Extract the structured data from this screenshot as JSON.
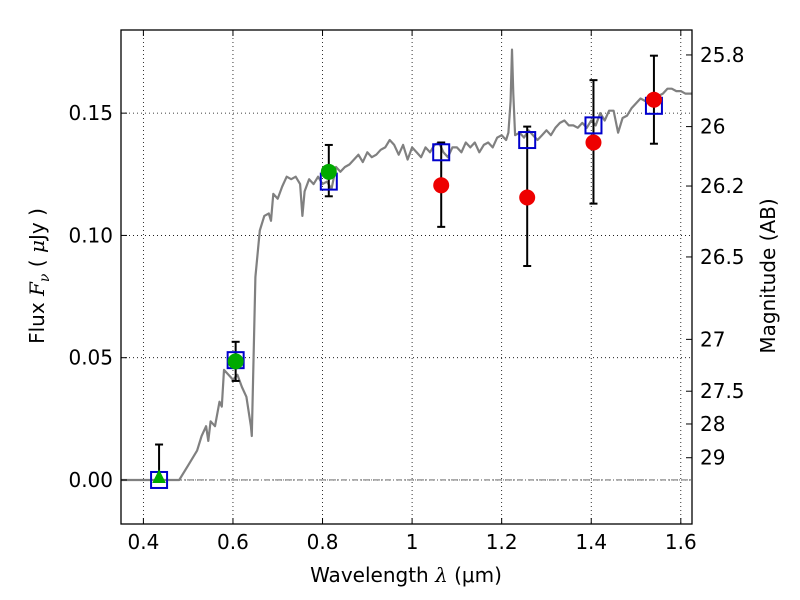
{
  "chart_data": {
    "type": "scatter",
    "xlabel": {
      "prefix": "Wavelength  ",
      "symbol": "λ",
      "unit": " (μm)"
    },
    "ylabel": {
      "prefix": "Flux  ",
      "symbol": "F",
      "sub": "ν",
      "open": "  ( ",
      "unit": "μ",
      "close": "Jy )"
    },
    "y2label": "Magnitude (AB)",
    "xlim": [
      0.35,
      1.625
    ],
    "ylim": [
      -0.018,
      0.184
    ],
    "grid": true,
    "x_ticks": [
      {
        "value": 0.4,
        "label": "0.4"
      },
      {
        "value": 0.6,
        "label": "0.6"
      },
      {
        "value": 0.8,
        "label": "0.8"
      },
      {
        "value": 1.0,
        "label": "1"
      },
      {
        "value": 1.2,
        "label": "1.2"
      },
      {
        "value": 1.4,
        "label": "1.4"
      },
      {
        "value": 1.6,
        "label": "1.6"
      }
    ],
    "y_ticks": [
      {
        "value": 0.0,
        "label": "0.00"
      },
      {
        "value": 0.05,
        "label": "0.05"
      },
      {
        "value": 0.1,
        "label": "0.10"
      },
      {
        "value": 0.15,
        "label": "0.15"
      }
    ],
    "y2_ticks": [
      {
        "flux": 0.1738,
        "label": "25.8"
      },
      {
        "flux": 0.1445,
        "label": "26"
      },
      {
        "flux": 0.1202,
        "label": "26.2"
      },
      {
        "flux": 0.0912,
        "label": "26.5"
      },
      {
        "flux": 0.0575,
        "label": "27"
      },
      {
        "flux": 0.0363,
        "label": "27.5"
      },
      {
        "flux": 0.0229,
        "label": "28"
      },
      {
        "flux": 0.0091,
        "label": "29"
      }
    ],
    "zero_line": 0.0,
    "series": [
      {
        "kind": "model_sed",
        "color": "#808080",
        "points": [
          [
            0.35,
            0.0
          ],
          [
            0.48,
            0.0
          ],
          [
            0.5,
            0.006
          ],
          [
            0.52,
            0.012
          ],
          [
            0.53,
            0.018
          ],
          [
            0.54,
            0.022
          ],
          [
            0.545,
            0.016
          ],
          [
            0.55,
            0.024
          ],
          [
            0.56,
            0.022
          ],
          [
            0.57,
            0.032
          ],
          [
            0.575,
            0.03
          ],
          [
            0.58,
            0.045
          ],
          [
            0.59,
            0.043
          ],
          [
            0.6,
            0.041
          ],
          [
            0.61,
            0.043
          ],
          [
            0.62,
            0.038
          ],
          [
            0.63,
            0.034
          ],
          [
            0.64,
            0.022
          ],
          [
            0.642,
            0.018
          ],
          [
            0.65,
            0.083
          ],
          [
            0.66,
            0.102
          ],
          [
            0.67,
            0.108
          ],
          [
            0.68,
            0.109
          ],
          [
            0.685,
            0.106
          ],
          [
            0.69,
            0.117
          ],
          [
            0.7,
            0.115
          ],
          [
            0.71,
            0.12
          ],
          [
            0.72,
            0.124
          ],
          [
            0.73,
            0.123
          ],
          [
            0.74,
            0.124
          ],
          [
            0.75,
            0.121
          ],
          [
            0.755,
            0.108
          ],
          [
            0.76,
            0.118
          ],
          [
            0.77,
            0.123
          ],
          [
            0.78,
            0.121
          ],
          [
            0.79,
            0.124
          ],
          [
            0.8,
            0.121
          ],
          [
            0.81,
            0.122
          ],
          [
            0.82,
            0.119
          ],
          [
            0.83,
            0.128
          ],
          [
            0.84,
            0.126
          ],
          [
            0.85,
            0.128
          ],
          [
            0.86,
            0.129
          ],
          [
            0.87,
            0.131
          ],
          [
            0.88,
            0.133
          ],
          [
            0.89,
            0.13
          ],
          [
            0.9,
            0.134
          ],
          [
            0.91,
            0.132
          ],
          [
            0.92,
            0.133
          ],
          [
            0.93,
            0.135
          ],
          [
            0.94,
            0.136
          ],
          [
            0.95,
            0.139
          ],
          [
            0.96,
            0.137
          ],
          [
            0.97,
            0.133
          ],
          [
            0.98,
            0.137
          ],
          [
            0.99,
            0.131
          ],
          [
            1.0,
            0.136
          ],
          [
            1.01,
            0.134
          ],
          [
            1.02,
            0.132
          ],
          [
            1.03,
            0.136
          ],
          [
            1.04,
            0.134
          ],
          [
            1.05,
            0.137
          ],
          [
            1.06,
            0.138
          ],
          [
            1.07,
            0.134
          ],
          [
            1.08,
            0.132
          ],
          [
            1.09,
            0.136
          ],
          [
            1.1,
            0.136
          ],
          [
            1.11,
            0.134
          ],
          [
            1.12,
            0.138
          ],
          [
            1.13,
            0.136
          ],
          [
            1.14,
            0.138
          ],
          [
            1.15,
            0.134
          ],
          [
            1.16,
            0.137
          ],
          [
            1.17,
            0.138
          ],
          [
            1.18,
            0.136
          ],
          [
            1.19,
            0.14
          ],
          [
            1.2,
            0.141
          ],
          [
            1.21,
            0.139
          ],
          [
            1.215,
            0.142
          ],
          [
            1.22,
            0.155
          ],
          [
            1.223,
            0.176
          ],
          [
            1.226,
            0.158
          ],
          [
            1.23,
            0.141
          ],
          [
            1.24,
            0.142
          ],
          [
            1.25,
            0.14
          ],
          [
            1.26,
            0.143
          ],
          [
            1.27,
            0.141
          ],
          [
            1.28,
            0.139
          ],
          [
            1.29,
            0.141
          ],
          [
            1.3,
            0.143
          ],
          [
            1.31,
            0.141
          ],
          [
            1.32,
            0.144
          ],
          [
            1.33,
            0.146
          ],
          [
            1.34,
            0.147
          ],
          [
            1.35,
            0.145
          ],
          [
            1.36,
            0.145
          ],
          [
            1.37,
            0.144
          ],
          [
            1.38,
            0.146
          ],
          [
            1.39,
            0.144
          ],
          [
            1.4,
            0.147
          ],
          [
            1.41,
            0.145
          ],
          [
            1.42,
            0.15
          ],
          [
            1.43,
            0.147
          ],
          [
            1.44,
            0.151
          ],
          [
            1.45,
            0.151
          ],
          [
            1.46,
            0.142
          ],
          [
            1.47,
            0.148
          ],
          [
            1.48,
            0.149
          ],
          [
            1.49,
            0.152
          ],
          [
            1.5,
            0.154
          ],
          [
            1.51,
            0.156
          ],
          [
            1.52,
            0.155
          ],
          [
            1.53,
            0.156
          ],
          [
            1.54,
            0.157
          ],
          [
            1.55,
            0.157
          ],
          [
            1.56,
            0.158
          ],
          [
            1.57,
            0.16
          ],
          [
            1.58,
            0.16
          ],
          [
            1.59,
            0.159
          ],
          [
            1.6,
            0.159
          ],
          [
            1.61,
            0.158
          ],
          [
            1.625,
            0.158
          ]
        ]
      },
      {
        "kind": "model_band_flux",
        "marker": "square",
        "color": "#0000cc",
        "points": [
          {
            "x": 0.435,
            "y": 0.0
          },
          {
            "x": 0.606,
            "y": 0.049
          },
          {
            "x": 0.814,
            "y": 0.122
          },
          {
            "x": 1.065,
            "y": 0.134
          },
          {
            "x": 1.257,
            "y": 0.139
          },
          {
            "x": 1.405,
            "y": 0.145
          },
          {
            "x": 1.54,
            "y": 0.153
          }
        ]
      },
      {
        "kind": "optical_detections",
        "marker": "circle",
        "color": "#00aa00",
        "points": [
          {
            "x": 0.606,
            "y": 0.0485,
            "yerr": [
              0.0405,
              0.0565
            ]
          },
          {
            "x": 0.814,
            "y": 0.126,
            "yerr": [
              0.116,
              0.137
            ]
          }
        ]
      },
      {
        "kind": "optical_upper_limit",
        "marker": "triangle",
        "color": "#00aa00",
        "points": [
          {
            "x": 0.435,
            "y": 0.001,
            "yerr": [
              0.0,
              0.0145
            ]
          }
        ]
      },
      {
        "kind": "nir_detections",
        "marker": "circle",
        "color": "#ee0000",
        "points": [
          {
            "x": 1.065,
            "y": 0.1205,
            "yerr": [
              0.1035,
              0.138
            ]
          },
          {
            "x": 1.257,
            "y": 0.1155,
            "yerr": [
              0.0875,
              0.1445
            ]
          },
          {
            "x": 1.405,
            "y": 0.138,
            "yerr": [
              0.113,
              0.1635
            ]
          },
          {
            "x": 1.54,
            "y": 0.1555,
            "yerr": [
              0.1375,
              0.1735
            ]
          }
        ]
      }
    ]
  }
}
